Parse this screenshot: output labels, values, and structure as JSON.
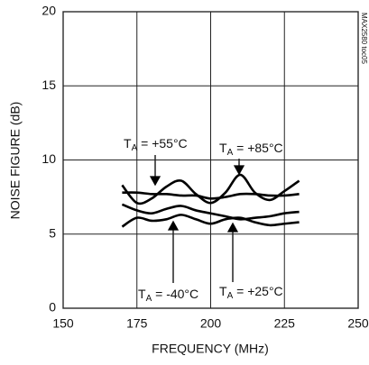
{
  "chart_data": {
    "type": "line",
    "xlabel": "FREQUENCY (MHz)",
    "ylabel": "NOISE FIGURE (dB)",
    "side_note": "MAX2580 toc05",
    "x": [
      170,
      175,
      180,
      185,
      190,
      195,
      200,
      205,
      210,
      215,
      220,
      225,
      230
    ],
    "series": [
      {
        "color": "#000000",
        "values": [
          8.3,
          7.1,
          7.4,
          8.2,
          8.6,
          7.7,
          7.1,
          7.8,
          9.0,
          7.8,
          7.3,
          7.9,
          8.6
        ]
      },
      {
        "color": "#000000",
        "values": [
          7.8,
          7.8,
          7.7,
          7.7,
          7.6,
          7.6,
          7.4,
          7.5,
          7.7,
          7.7,
          7.6,
          7.6,
          7.7
        ]
      },
      {
        "color": "#000000",
        "values": [
          7.0,
          6.6,
          6.4,
          6.7,
          6.9,
          6.6,
          6.4,
          6.2,
          6.0,
          6.1,
          6.2,
          6.4,
          6.5
        ]
      },
      {
        "color": "#000000",
        "values": [
          5.5,
          6.1,
          5.9,
          6.0,
          6.3,
          6.0,
          5.7,
          6.0,
          6.1,
          5.8,
          5.6,
          5.7,
          5.8
        ]
      }
    ],
    "annotations": [
      {
        "base": "T",
        "sub": "A",
        "text": " = +85°C"
      },
      {
        "base": "T",
        "sub": "A",
        "text": " = +55°C"
      },
      {
        "base": "T",
        "sub": "A",
        "text": " = +25°C"
      },
      {
        "base": "T",
        "sub": "A",
        "text": " = -40°C"
      }
    ],
    "xlim": [
      150,
      250
    ],
    "xticks": [
      150,
      175,
      200,
      225,
      250
    ],
    "ylim": [
      0,
      20
    ],
    "yticks": [
      0,
      5,
      10,
      15,
      20
    ],
    "grid": true
  }
}
